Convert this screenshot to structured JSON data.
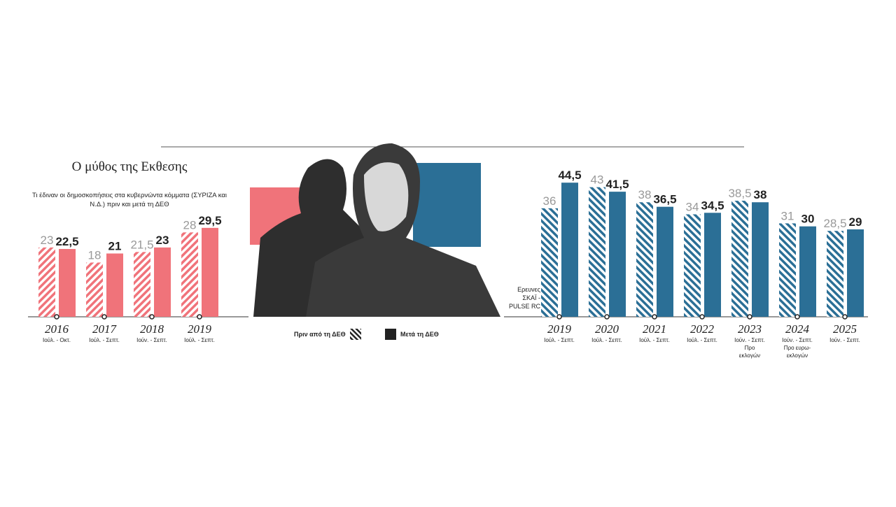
{
  "title": "Ο μύθος της Εκθεσης",
  "subtitle": "Τι έδιναν οι δημοσκοπήσεις στα κυβερνώντα κόμματα (ΣΥΡΙΖΑ και Ν.Δ.) πριν και μετά τη ΔΕΘ",
  "source": "Ερευνες ΣΚΑΪ - PULSE RC",
  "legend": {
    "before": "Πριν από τη ΔΕΘ",
    "after": "Μετά τη ΔΕΘ"
  },
  "colors": {
    "syriza": "#f0737a",
    "nd": "#2b6f96",
    "before_label": "#999999",
    "after_label": "#222222"
  },
  "chart_data": [
    {
      "type": "bar",
      "party": "ΣΥΡΙΖΑ",
      "categories": [
        "2016",
        "2017",
        "2018",
        "2019"
      ],
      "periods": [
        "Ιούλ. - Οκτ.",
        "Ιούλ. - Σεπτ.",
        "Ιούν. - Σεπτ.",
        "Ιούλ. - Σεπτ."
      ],
      "series": [
        {
          "name": "Πριν από τη ΔΕΘ",
          "values": [
            23,
            18,
            21.5,
            28
          ],
          "labels": [
            "23",
            "18",
            "21,5",
            "28"
          ]
        },
        {
          "name": "Μετά τη ΔΕΘ",
          "values": [
            22.5,
            21,
            23,
            29.5
          ],
          "labels": [
            "22,5",
            "21",
            "23",
            "29,5"
          ]
        }
      ]
    },
    {
      "type": "bar",
      "party": "Ν.Δ.",
      "categories": [
        "2019",
        "2020",
        "2021",
        "2022",
        "2023",
        "2024",
        "2025"
      ],
      "periods": [
        "Ιούλ. - Σεπτ.",
        "Ιούλ. - Σεπτ.",
        "Ιούλ. - Σεπτ.",
        "Ιούλ. - Σεπτ.",
        "Ιούν. - Σεπτ. Προ εκλογών",
        "Ιούν. - Σεπτ. Προ ευρω-εκλογών",
        "Ιούν. - Σεπτ."
      ],
      "series": [
        {
          "name": "Πριν από τη ΔΕΘ",
          "values": [
            36,
            43,
            38,
            34,
            38.5,
            31,
            28.5
          ],
          "labels": [
            "36",
            "43",
            "38",
            "34",
            "38,5",
            "31",
            "28,5"
          ]
        },
        {
          "name": "Μετά τη ΔΕΘ",
          "values": [
            44.5,
            41.5,
            36.5,
            34.5,
            38,
            30,
            29
          ],
          "labels": [
            "44,5",
            "41,5",
            "36,5",
            "34,5",
            "38",
            "30",
            "29"
          ]
        }
      ]
    }
  ]
}
